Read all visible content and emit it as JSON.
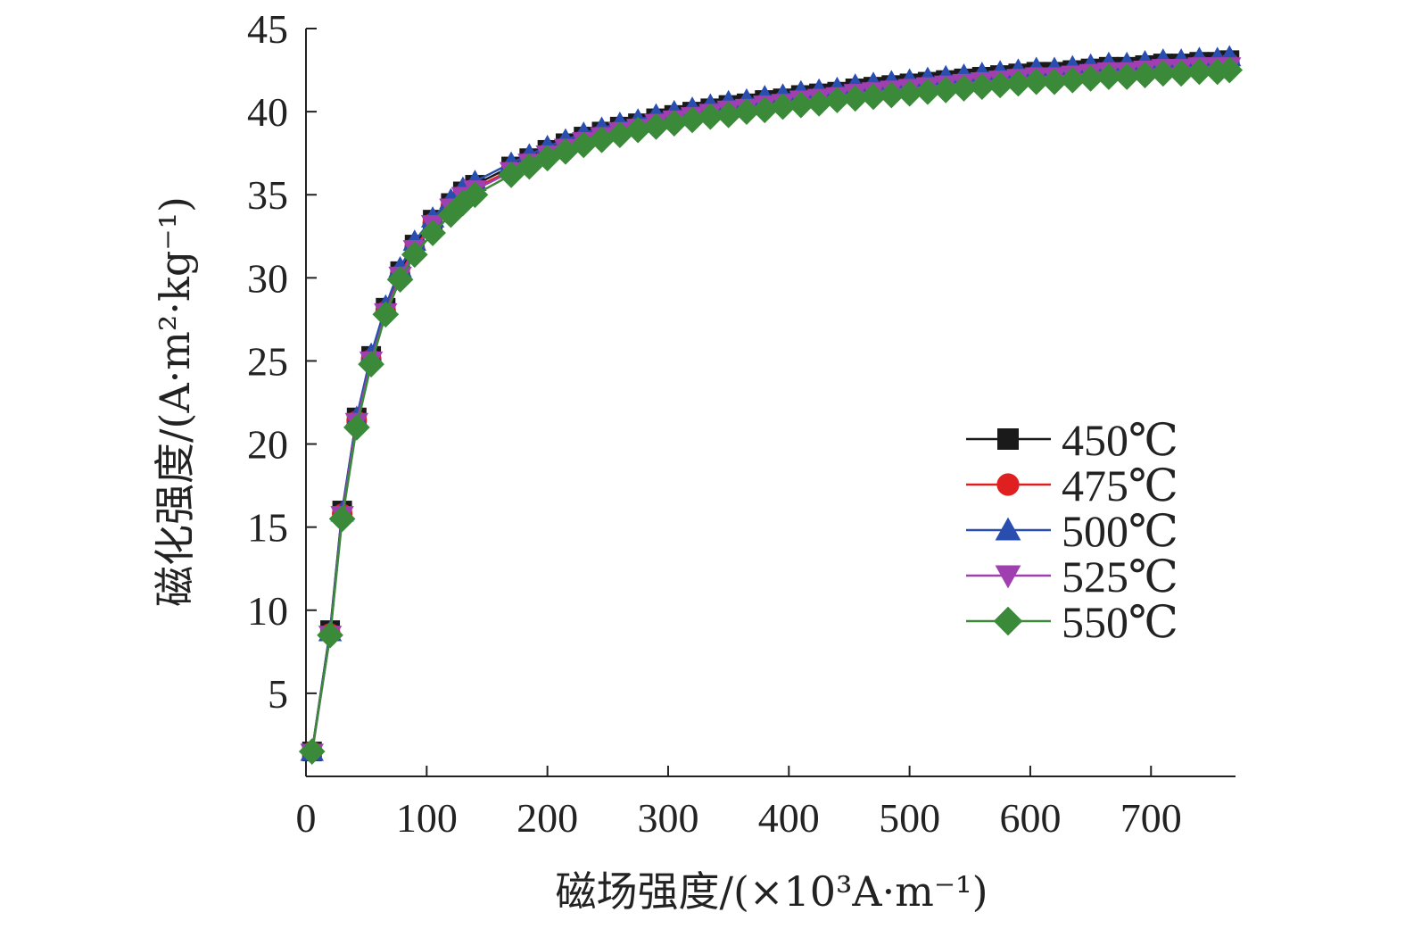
{
  "chart_data": {
    "type": "line",
    "title": "",
    "xlabel": "磁场强度/(×10³A·m⁻¹)",
    "ylabel": "磁化强度/(A·m²·kg⁻¹)",
    "xlim": [
      0,
      770
    ],
    "ylim": [
      0,
      45
    ],
    "x_ticks": [
      "0",
      "100",
      "200",
      "300",
      "400",
      "500",
      "600",
      "700"
    ],
    "y_ticks": [
      "5",
      "10",
      "15",
      "20",
      "25",
      "30",
      "35",
      "40",
      "45"
    ],
    "grid": false,
    "legend_position": "center-right",
    "x": [
      5,
      20,
      30,
      42,
      54,
      66,
      78,
      90,
      105,
      120,
      130,
      140,
      170,
      185,
      200,
      215,
      230,
      245,
      260,
      275,
      290,
      305,
      320,
      335,
      350,
      365,
      380,
      395,
      410,
      425,
      440,
      455,
      470,
      485,
      500,
      515,
      530,
      545,
      560,
      575,
      590,
      605,
      620,
      635,
      650,
      665,
      680,
      695,
      710,
      725,
      740,
      755,
      765
    ],
    "series": [
      {
        "name": "450℃",
        "color": "#1a1a1a",
        "marker": "square",
        "values": [
          1.5,
          8.8,
          16.0,
          21.6,
          25.3,
          28.2,
          30.4,
          32.0,
          33.5,
          34.5,
          35.2,
          35.6,
          36.7,
          37.2,
          37.7,
          38.1,
          38.5,
          38.8,
          39.1,
          39.3,
          39.6,
          39.8,
          40.0,
          40.2,
          40.4,
          40.5,
          40.7,
          40.8,
          41.0,
          41.1,
          41.2,
          41.4,
          41.5,
          41.6,
          41.7,
          41.8,
          41.9,
          42.0,
          42.1,
          42.2,
          42.3,
          42.4,
          42.4,
          42.5,
          42.6,
          42.7,
          42.7,
          42.8,
          42.9,
          42.9,
          43.0,
          43.0,
          43.1
        ]
      },
      {
        "name": "475℃",
        "color": "#e02020",
        "marker": "circle",
        "values": [
          1.5,
          8.6,
          15.8,
          21.4,
          25.1,
          28.0,
          30.2,
          31.8,
          33.3,
          34.3,
          35.0,
          35.4,
          36.5,
          37.0,
          37.5,
          37.9,
          38.3,
          38.6,
          38.9,
          39.1,
          39.4,
          39.6,
          39.8,
          40.0,
          40.2,
          40.3,
          40.5,
          40.6,
          40.8,
          40.9,
          41.0,
          41.2,
          41.3,
          41.4,
          41.5,
          41.6,
          41.7,
          41.8,
          41.9,
          42.0,
          42.1,
          42.2,
          42.2,
          42.3,
          42.4,
          42.5,
          42.5,
          42.6,
          42.7,
          42.7,
          42.8,
          42.8,
          42.9
        ]
      },
      {
        "name": "500℃",
        "color": "#2a4db0",
        "marker": "triangle-up",
        "values": [
          1.5,
          8.7,
          15.9,
          21.6,
          25.4,
          28.3,
          30.6,
          32.2,
          33.6,
          34.7,
          35.4,
          35.8,
          36.9,
          37.4,
          37.9,
          38.3,
          38.7,
          39.0,
          39.3,
          39.5,
          39.8,
          40.0,
          40.2,
          40.4,
          40.6,
          40.7,
          40.9,
          41.0,
          41.2,
          41.3,
          41.4,
          41.6,
          41.7,
          41.8,
          41.9,
          42.0,
          42.1,
          42.2,
          42.3,
          42.4,
          42.5,
          42.6,
          42.6,
          42.7,
          42.8,
          42.9,
          42.9,
          43.0,
          43.1,
          43.1,
          43.2,
          43.2,
          43.3
        ]
      },
      {
        "name": "525℃",
        "color": "#a040b0",
        "marker": "triangle-down",
        "values": [
          1.4,
          8.5,
          15.7,
          21.3,
          25.0,
          27.9,
          30.1,
          31.7,
          33.2,
          34.2,
          34.9,
          35.3,
          36.4,
          36.9,
          37.4,
          37.8,
          38.2,
          38.5,
          38.8,
          39.0,
          39.3,
          39.5,
          39.7,
          39.9,
          40.1,
          40.2,
          40.4,
          40.5,
          40.7,
          40.8,
          40.9,
          41.1,
          41.2,
          41.3,
          41.4,
          41.5,
          41.6,
          41.7,
          41.8,
          41.9,
          42.0,
          42.1,
          42.1,
          42.2,
          42.3,
          42.4,
          42.4,
          42.5,
          42.6,
          42.6,
          42.7,
          42.7,
          42.7
        ]
      },
      {
        "name": "550℃",
        "color": "#3a8a3a",
        "marker": "diamond",
        "values": [
          1.5,
          8.5,
          15.5,
          21.0,
          24.8,
          27.8,
          29.9,
          31.4,
          32.7,
          33.8,
          34.5,
          35.0,
          36.2,
          36.7,
          37.2,
          37.6,
          38.0,
          38.3,
          38.6,
          38.9,
          39.1,
          39.3,
          39.5,
          39.7,
          39.8,
          40.0,
          40.1,
          40.3,
          40.4,
          40.5,
          40.7,
          40.8,
          40.9,
          41.0,
          41.1,
          41.2,
          41.3,
          41.4,
          41.5,
          41.6,
          41.7,
          41.8,
          41.8,
          41.9,
          42.0,
          42.1,
          42.1,
          42.2,
          42.3,
          42.3,
          42.4,
          42.4,
          42.5
        ]
      }
    ]
  }
}
